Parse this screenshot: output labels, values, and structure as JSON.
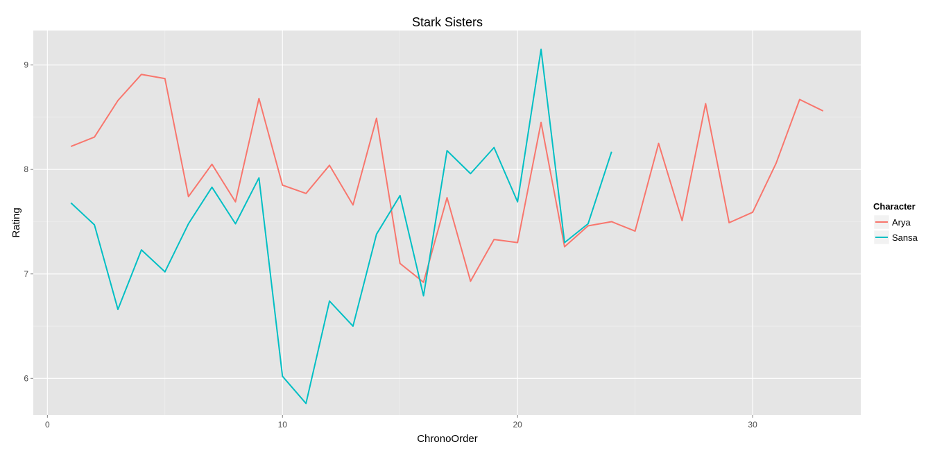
{
  "chart_data": {
    "type": "line",
    "title": "Stark Sisters",
    "xlabel": "ChronoOrder",
    "ylabel": "Rating",
    "xlim": [
      -0.6,
      34.6
    ],
    "ylim": [
      5.65,
      9.33
    ],
    "x_ticks": [
      0,
      10,
      20,
      30
    ],
    "x_tick_labels": [
      "0",
      "10",
      "20",
      "30"
    ],
    "y_ticks": [
      6,
      7,
      8,
      9
    ],
    "y_tick_labels": [
      "6",
      "7",
      "8",
      "9"
    ],
    "grid": true,
    "legend": {
      "title": "Character",
      "position": "right"
    },
    "series": [
      {
        "name": "Arya",
        "color": "#F8766D",
        "x": [
          1,
          2,
          3,
          4,
          5,
          6,
          7,
          8,
          9,
          10,
          11,
          12,
          13,
          14,
          15,
          16,
          17,
          18,
          19,
          20,
          21,
          22,
          23,
          24,
          25,
          26,
          27,
          28,
          29,
          30,
          31,
          32,
          33
        ],
        "y": [
          8.22,
          8.31,
          8.66,
          8.91,
          8.87,
          7.74,
          8.05,
          7.69,
          8.68,
          7.85,
          7.77,
          8.04,
          7.66,
          8.49,
          7.1,
          6.92,
          7.73,
          6.93,
          7.33,
          7.3,
          8.45,
          7.26,
          7.46,
          7.5,
          7.41,
          8.25,
          7.51,
          8.63,
          7.49,
          7.59,
          8.06,
          8.67,
          8.56
        ]
      },
      {
        "name": "Sansa",
        "color": "#00BFC4",
        "x": [
          1,
          2,
          3,
          4,
          5,
          6,
          7,
          8,
          9,
          10,
          11,
          12,
          13,
          14,
          15,
          16,
          17,
          18,
          19,
          20,
          21,
          22,
          23,
          24
        ],
        "y": [
          7.68,
          7.47,
          6.66,
          7.23,
          7.02,
          7.48,
          7.83,
          7.48,
          7.92,
          6.02,
          5.76,
          6.74,
          6.5,
          7.38,
          7.75,
          6.79,
          8.18,
          7.96,
          8.21,
          7.69,
          9.15,
          7.3,
          7.48,
          8.17
        ]
      }
    ]
  }
}
